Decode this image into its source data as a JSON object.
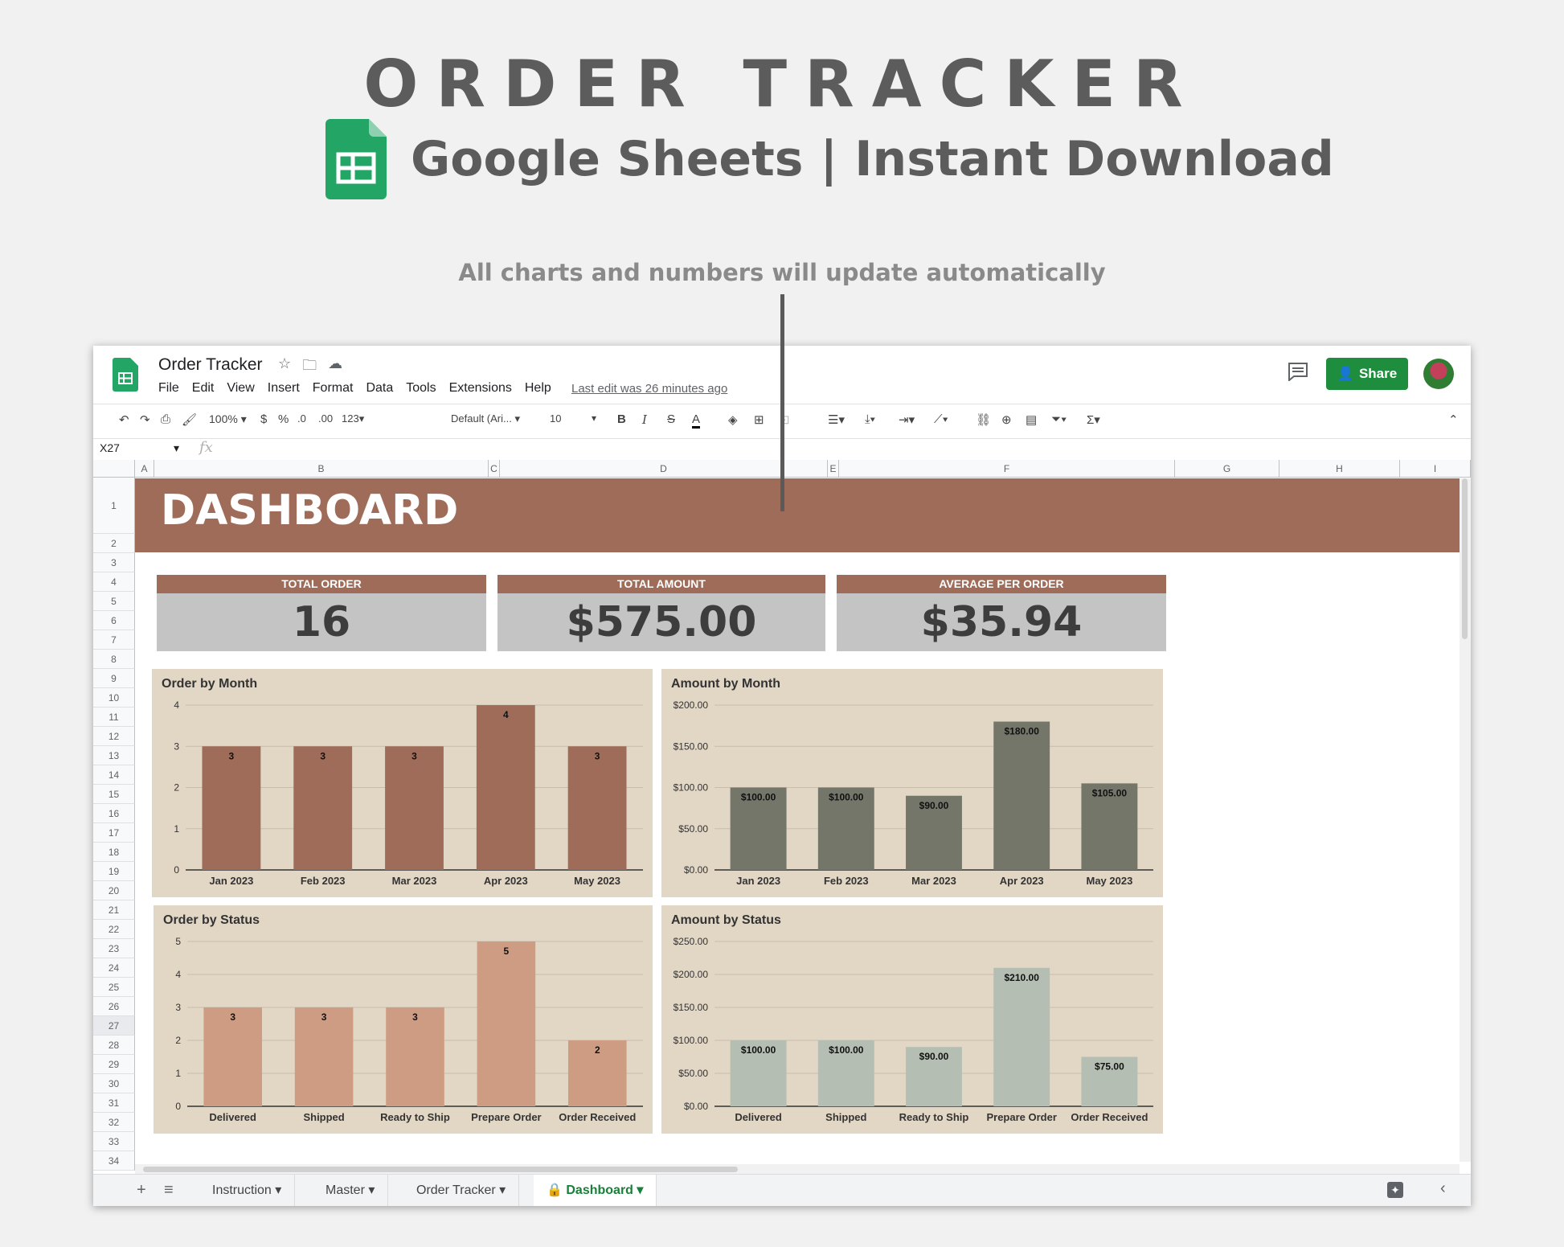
{
  "promo": {
    "title": "ORDER TRACKER",
    "subtitle": "Google Sheets | Instant Download",
    "callout": "All charts and numbers will update automatically"
  },
  "app": {
    "doc_title": "Order Tracker",
    "menu": [
      "File",
      "Edit",
      "View",
      "Insert",
      "Format",
      "Data",
      "Tools",
      "Extensions",
      "Help"
    ],
    "last_edit": "Last edit was 26 minutes ago",
    "share_label": "Share"
  },
  "toolbar": {
    "zoom": "100%",
    "currency": "$",
    "percent": "%",
    "dec_decrease": ".0",
    "dec_increase": ".00",
    "format_more": "123",
    "font": "Default (Ari...",
    "font_size": "10",
    "bold": "B",
    "italic": "I",
    "strike": "S",
    "text_color": "A",
    "function": "Σ"
  },
  "formula_bar": {
    "cell_ref": "X27",
    "fx": "fx"
  },
  "columns": [
    "A",
    "B",
    "C",
    "D",
    "E",
    "F",
    "G",
    "H",
    "I"
  ],
  "rows": [
    "1",
    "2",
    "3",
    "4",
    "5",
    "6",
    "7",
    "8",
    "9",
    "10",
    "11",
    "12",
    "13",
    "14",
    "15",
    "16",
    "17",
    "18",
    "19",
    "20",
    "21",
    "22",
    "23",
    "24",
    "25",
    "26",
    "27",
    "28",
    "29",
    "30",
    "31",
    "32",
    "33",
    "34"
  ],
  "dashboard": {
    "title": "DASHBOARD",
    "kpis": [
      {
        "label": "TOTAL ORDER",
        "value": "16"
      },
      {
        "label": "TOTAL AMOUNT",
        "value": "$575.00"
      },
      {
        "label": "AVERAGE PER ORDER",
        "value": "$35.94"
      }
    ]
  },
  "chart_data": [
    {
      "type": "bar",
      "title": "Order by Month",
      "categories": [
        "Jan 2023",
        "Feb 2023",
        "Mar 2023",
        "Apr 2023",
        "May 2023"
      ],
      "values": [
        3,
        3,
        3,
        4,
        3
      ],
      "data_labels": [
        "3",
        "3",
        "3",
        "4",
        "3"
      ],
      "yticks": [
        "0",
        "1",
        "2",
        "3",
        "4"
      ],
      "ylim": [
        0,
        4
      ],
      "color": "#a06c5a"
    },
    {
      "type": "bar",
      "title": "Amount by Month",
      "categories": [
        "Jan 2023",
        "Feb 2023",
        "Mar 2023",
        "Apr 2023",
        "May 2023"
      ],
      "values": [
        100,
        100,
        90,
        180,
        105
      ],
      "data_labels": [
        "$100.00",
        "$100.00",
        "$90.00",
        "$180.00",
        "$105.00"
      ],
      "yticks": [
        "$0.00",
        "$50.00",
        "$100.00",
        "$150.00",
        "$200.00"
      ],
      "ylim": [
        0,
        200
      ],
      "color": "#74766a"
    },
    {
      "type": "bar",
      "title": "Order by Status",
      "categories": [
        "Delivered",
        "Shipped",
        "Ready to Ship",
        "Prepare Order",
        "Order Received"
      ],
      "values": [
        3,
        3,
        3,
        5,
        2
      ],
      "data_labels": [
        "3",
        "3",
        "3",
        "5",
        "2"
      ],
      "yticks": [
        "0",
        "1",
        "2",
        "3",
        "4",
        "5"
      ],
      "ylim": [
        0,
        5
      ],
      "color": "#cd9c83"
    },
    {
      "type": "bar",
      "title": "Amount by Status",
      "categories": [
        "Delivered",
        "Shipped",
        "Ready to Ship",
        "Prepare Order",
        "Order Received"
      ],
      "values": [
        100,
        100,
        90,
        210,
        75
      ],
      "data_labels": [
        "$100.00",
        "$100.00",
        "$90.00",
        "$210.00",
        "$75.00"
      ],
      "yticks": [
        "$0.00",
        "$50.00",
        "$100.00",
        "$150.00",
        "$200.00",
        "$250.00"
      ],
      "ylim": [
        0,
        250
      ],
      "color": "#b5beb3"
    }
  ],
  "tabs": [
    "Instruction",
    "Master",
    "Order Tracker",
    "Dashboard"
  ],
  "active_tab": "Dashboard"
}
